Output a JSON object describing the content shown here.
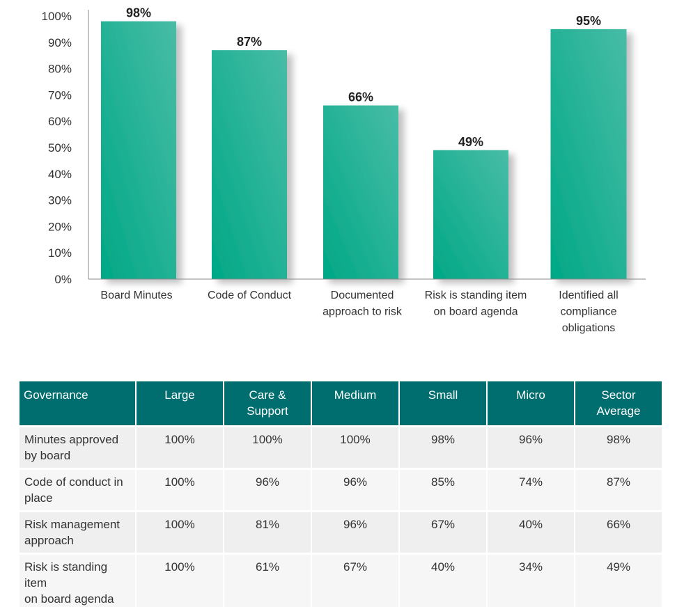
{
  "chart_data": {
    "type": "bar",
    "categories": [
      [
        "Board Minutes"
      ],
      [
        "Code of Conduct"
      ],
      [
        "Documented",
        "approach to risk"
      ],
      [
        "Risk is standing item",
        "on board agenda"
      ],
      [
        "Identified all",
        "compliance",
        "obligations"
      ]
    ],
    "values": [
      98,
      87,
      66,
      49,
      95
    ],
    "value_labels": [
      "98%",
      "87%",
      "66%",
      "49%",
      "95%"
    ],
    "yticks": [
      "0%",
      "10%",
      "20%",
      "30%",
      "40%",
      "50%",
      "60%",
      "70%",
      "80%",
      "90%",
      "100%"
    ],
    "ylim": [
      0,
      100
    ],
    "grid": false,
    "bar_color": "#1aab8a",
    "bar_color_top": "#3fb9a2"
  },
  "table": {
    "headers": [
      [
        "Governance"
      ],
      [
        "Large"
      ],
      [
        "Care &",
        "Support"
      ],
      [
        "Medium"
      ],
      [
        "Small"
      ],
      [
        "Micro"
      ],
      [
        "Sector",
        "Average"
      ]
    ],
    "rows": [
      {
        "label": [
          "Minutes approved",
          "by board"
        ],
        "cells": [
          "100%",
          "100%",
          "100%",
          "98%",
          "96%",
          "98%"
        ]
      },
      {
        "label": [
          "Code of conduct in",
          "place"
        ],
        "cells": [
          "100%",
          "96%",
          "96%",
          "85%",
          "74%",
          "87%"
        ]
      },
      {
        "label": [
          "Risk management",
          "approach"
        ],
        "cells": [
          "100%",
          "81%",
          "96%",
          "67%",
          "40%",
          "66%"
        ]
      },
      {
        "label": [
          "Risk is standing item",
          "on board agenda"
        ],
        "cells": [
          "100%",
          "61%",
          "67%",
          "40%",
          "34%",
          "49%"
        ]
      }
    ],
    "header_color": "#006d6f"
  }
}
